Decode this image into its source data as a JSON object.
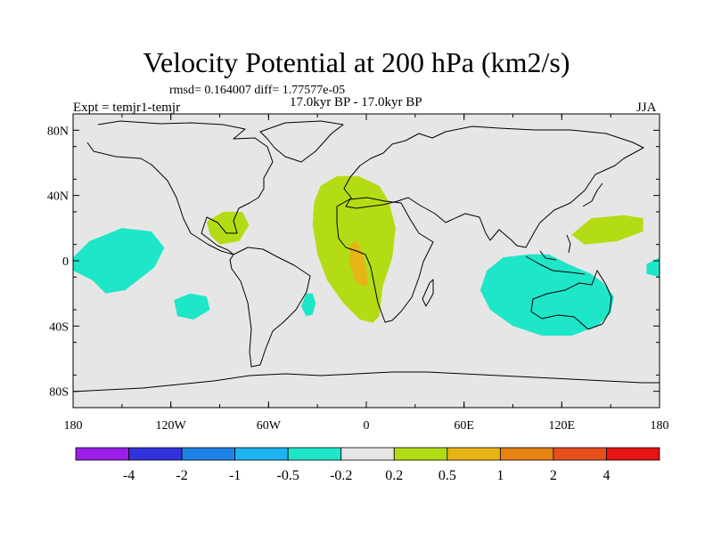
{
  "header": {
    "title": "Velocity Potential at 200 hPa (km2/s)",
    "stats": "rmsd= 0.164007 diff= 1.77577e-05",
    "experiment": "Expt = temjr1-temjr",
    "period": "17.0kyr BP - 17.0kyr BP",
    "season": "JJA"
  },
  "axes": {
    "lat_ticks": [
      80,
      40,
      0,
      -40,
      -80
    ],
    "lat_labels": [
      "80N",
      "40N",
      "0",
      "40S",
      "80S"
    ],
    "lon_ticks": [
      -180,
      -120,
      -60,
      0,
      60,
      120,
      180
    ],
    "lon_labels": [
      "180",
      "120W",
      "60W",
      "0",
      "60E",
      "120E",
      "180"
    ]
  },
  "colorbar": {
    "colors": [
      "#9b1fe6",
      "#3232dc",
      "#1e82e6",
      "#1eb4f0",
      "#1ee6c8",
      "#e6e6e6",
      "#b4dc14",
      "#e6b414",
      "#e68214",
      "#e6501e",
      "#e61414"
    ],
    "labels": [
      "-4",
      "-2",
      "-1",
      "-0.5",
      "-0.2",
      "0.2",
      "0.5",
      "1",
      "2",
      "4"
    ]
  },
  "map_data": {
    "type": "filled-contour-map",
    "variable": "velocity potential difference",
    "level_hPa": 200,
    "units": "km2/s",
    "regions": [
      {
        "name": "central-atlantic-africa",
        "class": "0.2 to 0.5",
        "color": "#b4dc14",
        "poly": [
          [
            -28,
            46
          ],
          [
            -18,
            52
          ],
          [
            -5,
            52
          ],
          [
            8,
            46
          ],
          [
            14,
            36
          ],
          [
            18,
            20
          ],
          [
            16,
            2
          ],
          [
            10,
            -16
          ],
          [
            8,
            -34
          ],
          [
            4,
            -38
          ],
          [
            -4,
            -36
          ],
          [
            -14,
            -26
          ],
          [
            -24,
            -12
          ],
          [
            -30,
            4
          ],
          [
            -33,
            22
          ],
          [
            -32,
            36
          ]
        ]
      },
      {
        "name": "south-atlantic-max",
        "class": "0.5 to 1",
        "color": "#e6b414",
        "poly": [
          [
            -10,
            10
          ],
          [
            -6,
            12
          ],
          [
            -2,
            4
          ],
          [
            0,
            -6
          ],
          [
            1,
            -14
          ],
          [
            -2,
            -16
          ],
          [
            -7,
            -12
          ],
          [
            -10,
            -2
          ]
        ]
      },
      {
        "name": "gulf-of-mexico",
        "class": "0.2 to 0.5",
        "color": "#b4dc14",
        "poly": [
          [
            -98,
            24
          ],
          [
            -88,
            30
          ],
          [
            -76,
            30
          ],
          [
            -72,
            22
          ],
          [
            -78,
            12
          ],
          [
            -90,
            10
          ],
          [
            -96,
            16
          ]
        ]
      },
      {
        "name": "western-pacific",
        "class": "0.2 to 0.5",
        "color": "#b4dc14",
        "poly": [
          [
            126,
            16
          ],
          [
            138,
            26
          ],
          [
            158,
            28
          ],
          [
            170,
            26
          ],
          [
            170,
            18
          ],
          [
            154,
            12
          ],
          [
            134,
            10
          ]
        ]
      },
      {
        "name": "eastern-pacific-negative",
        "class": "-0.5 to -0.2",
        "color": "#1ee6c8",
        "poly": [
          [
            -180,
            2
          ],
          [
            -170,
            12
          ],
          [
            -150,
            20
          ],
          [
            -132,
            18
          ],
          [
            -124,
            8
          ],
          [
            -130,
            -4
          ],
          [
            -148,
            -18
          ],
          [
            -160,
            -20
          ],
          [
            -168,
            -12
          ],
          [
            -180,
            -6
          ]
        ]
      },
      {
        "name": "south-pacific-negative",
        "class": "-0.5 to -0.2",
        "color": "#1ee6c8",
        "poly": [
          [
            -118,
            -24
          ],
          [
            -108,
            -20
          ],
          [
            -98,
            -22
          ],
          [
            -96,
            -30
          ],
          [
            -106,
            -36
          ],
          [
            -116,
            -34
          ]
        ]
      },
      {
        "name": "south-atlantic-negative",
        "class": "-0.5 to -0.2",
        "color": "#1ee6c8",
        "poly": [
          [
            -37,
            -20
          ],
          [
            -33,
            -20
          ],
          [
            -31,
            -26
          ],
          [
            -33,
            -33
          ],
          [
            -37,
            -34
          ],
          [
            -40,
            -28
          ]
        ]
      },
      {
        "name": "indian-ocean-australia",
        "class": "-0.5 to -0.2",
        "color": "#1ee6c8",
        "poly": [
          [
            74,
            -6
          ],
          [
            84,
            2
          ],
          [
            100,
            4
          ],
          [
            112,
            4
          ],
          [
            124,
            -2
          ],
          [
            138,
            -8
          ],
          [
            146,
            -14
          ],
          [
            152,
            -22
          ],
          [
            150,
            -32
          ],
          [
            142,
            -40
          ],
          [
            126,
            -46
          ],
          [
            108,
            -46
          ],
          [
            90,
            -40
          ],
          [
            76,
            -30
          ],
          [
            70,
            -18
          ]
        ]
      },
      {
        "name": "dateline-edge",
        "class": "-0.5 to -0.2",
        "color": "#1ee6c8",
        "poly": [
          [
            180,
            2
          ],
          [
            172,
            -2
          ],
          [
            172,
            -8
          ],
          [
            180,
            -10
          ]
        ]
      }
    ]
  }
}
